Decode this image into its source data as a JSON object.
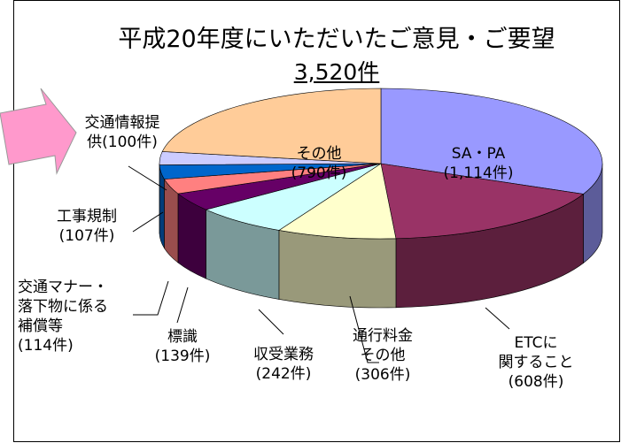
{
  "chart_data": {
    "type": "pie3d",
    "title": "平成20年度にいただいたご意見・ご要望",
    "subtitle": "3,520件",
    "categories": [
      "SA・PA",
      "ETCに\n関すること",
      "通行料金\nその他",
      "収受業務",
      "標識",
      "交通マナー・\n落下物に係る\n補償等",
      "工事規制",
      "交通情報提供",
      "その他"
    ],
    "values": [
      1114,
      608,
      306,
      242,
      139,
      114,
      107,
      100,
      790
    ],
    "value_labels": [
      "(1,114件)",
      "(608件)",
      "(306件)",
      "(242件)",
      "(139件)",
      "(114件)",
      "(107件)",
      "(100件)",
      "(790件)"
    ],
    "colors": [
      "#9999ff",
      "#993366",
      "#ffffcc",
      "#ccffff",
      "#660066",
      "#ff8080",
      "#0066cc",
      "#ccccff",
      "#ffcc99"
    ]
  }
}
